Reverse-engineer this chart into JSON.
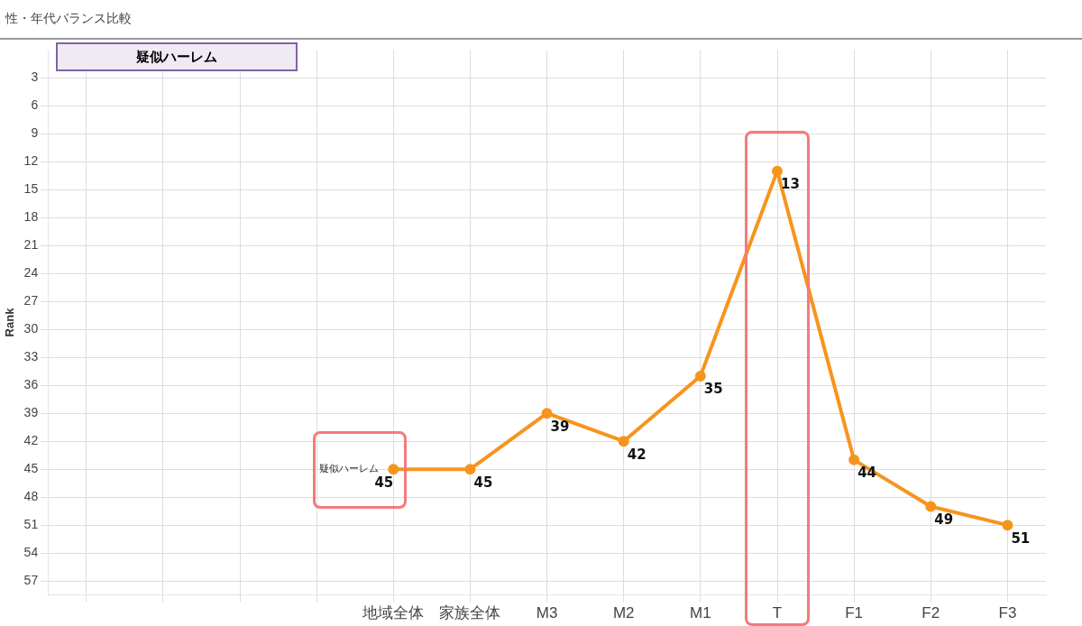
{
  "chart_data": {
    "type": "line",
    "title": "性・年代バランス比較",
    "ylabel": "Rank",
    "categories": [
      null,
      null,
      null,
      null,
      "地域全体",
      "家族全体",
      "M3",
      "M2",
      "M1",
      "T",
      "F1",
      "F2",
      "F3"
    ],
    "series": [
      {
        "name": "疑似ハーレム",
        "color": "#f7941d",
        "values": [
          null,
          null,
          null,
          null,
          45,
          45,
          39,
          42,
          35,
          13,
          44,
          49,
          51
        ]
      }
    ],
    "ylim": [
      58.5,
      0
    ],
    "yticks": [
      3,
      6,
      9,
      12,
      15,
      18,
      21,
      24,
      27,
      30,
      33,
      36,
      39,
      42,
      45,
      48,
      51,
      54,
      57
    ],
    "grid": true,
    "legend": false,
    "marker": "circle",
    "line_style": "solid",
    "data_labels": true
  }
}
